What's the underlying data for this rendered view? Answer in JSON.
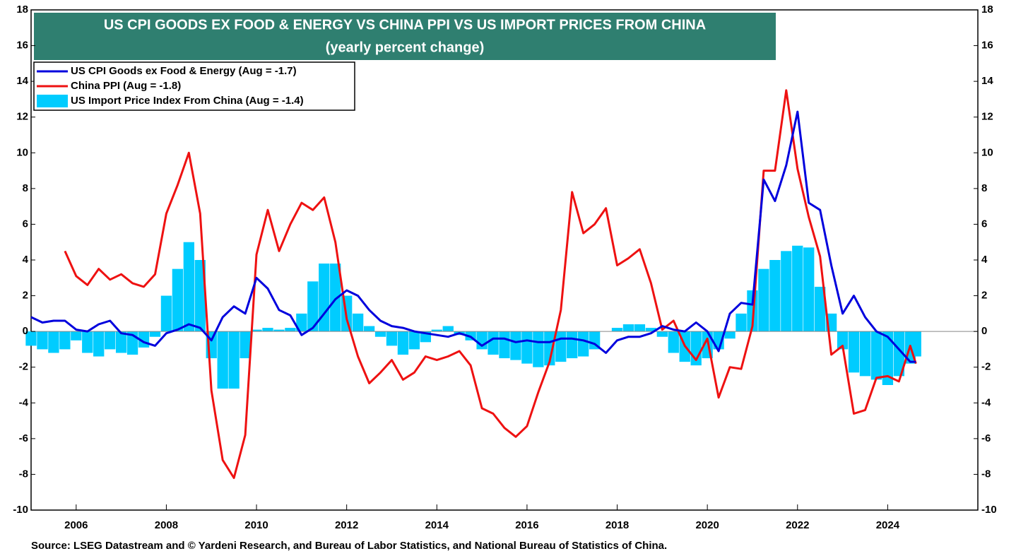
{
  "chart_data": {
    "type": "line",
    "title": "US CPI GOODS EX FOOD & ENERGY VS CHINA PPI VS US IMPORT PRICES FROM CHINA",
    "subtitle": "(yearly percent change)",
    "source": "Source: LSEG Datastream and © Yardeni Research, and Bureau of Labor Statistics, and National Bureau of Statistics of China.",
    "legend": "upper left",
    "xlim": [
      2005,
      2026
    ],
    "xticks": [
      2006,
      2008,
      2010,
      2012,
      2014,
      2016,
      2018,
      2020,
      2022,
      2024
    ],
    "ylim": [
      -10,
      18
    ],
    "yticks": [
      -10,
      -8,
      -6,
      -4,
      -2,
      0,
      2,
      4,
      6,
      8,
      10,
      12,
      14,
      16,
      18
    ],
    "x": [
      2005,
      2005.25,
      2005.5,
      2005.75,
      2006,
      2006.25,
      2006.5,
      2006.75,
      2007,
      2007.25,
      2007.5,
      2007.75,
      2008,
      2008.25,
      2008.5,
      2008.75,
      2009,
      2009.25,
      2009.5,
      2009.75,
      2010,
      2010.25,
      2010.5,
      2010.75,
      2011,
      2011.25,
      2011.5,
      2011.75,
      2012,
      2012.25,
      2012.5,
      2012.75,
      2013,
      2013.25,
      2013.5,
      2013.75,
      2014,
      2014.25,
      2014.5,
      2014.75,
      2015,
      2015.25,
      2015.5,
      2015.75,
      2016,
      2016.25,
      2016.5,
      2016.75,
      2017,
      2017.25,
      2017.5,
      2017.75,
      2018,
      2018.25,
      2018.5,
      2018.75,
      2019,
      2019.25,
      2019.5,
      2019.75,
      2020,
      2020.25,
      2020.5,
      2020.75,
      2021,
      2021.25,
      2021.5,
      2021.75,
      2022,
      2022.25,
      2022.5,
      2022.75,
      2023,
      2023.25,
      2023.5,
      2023.75,
      2024,
      2024.25,
      2024.5,
      2024.625
    ],
    "series": [
      {
        "name": "US Import Price Index From China (Aug = -1.4)",
        "type": "bar",
        "color": "#00ccff",
        "values": [
          -0.8,
          -1.0,
          -1.2,
          -1.0,
          -0.5,
          -1.2,
          -1.4,
          -1.0,
          -1.2,
          -1.3,
          -0.9,
          -0.3,
          2.0,
          3.5,
          5.0,
          4.0,
          -1.5,
          -3.2,
          -3.2,
          -1.5,
          0.1,
          0.2,
          0.1,
          0.2,
          1.0,
          2.8,
          3.8,
          3.8,
          2.0,
          1.0,
          0.3,
          -0.3,
          -0.8,
          -1.3,
          -1.0,
          -0.6,
          0.1,
          0.3,
          -0.2,
          -0.5,
          -1.0,
          -1.3,
          -1.5,
          -1.6,
          -1.8,
          -2.0,
          -1.9,
          -1.7,
          -1.5,
          -1.4,
          -1.0,
          0.0,
          0.2,
          0.4,
          0.4,
          0.2,
          -0.3,
          -1.2,
          -1.7,
          -1.9,
          -1.5,
          -1.0,
          -0.4,
          1.0,
          2.3,
          3.5,
          4.0,
          4.5,
          4.8,
          4.7,
          2.5,
          1.0,
          -1.0,
          -2.3,
          -2.5,
          -2.7,
          -3.0,
          -2.5,
          -1.8,
          -1.4
        ]
      },
      {
        "name": "China PPI (Aug = -1.8)",
        "type": "line",
        "color": "#ee1111",
        "values": [
          null,
          null,
          null,
          4.5,
          3.1,
          2.6,
          3.5,
          2.9,
          3.2,
          2.7,
          2.5,
          3.2,
          6.6,
          8.2,
          10.0,
          6.6,
          -3.3,
          -7.2,
          -8.2,
          -5.8,
          4.3,
          6.8,
          4.5,
          6.0,
          7.2,
          6.8,
          7.5,
          5.0,
          0.7,
          -1.4,
          -2.9,
          -2.3,
          -1.6,
          -2.7,
          -2.3,
          -1.4,
          -1.6,
          -1.4,
          -1.1,
          -1.9,
          -4.3,
          -4.6,
          -5.4,
          -5.9,
          -5.3,
          -3.4,
          -1.7,
          1.2,
          7.8,
          5.5,
          6.0,
          6.9,
          3.7,
          4.1,
          4.6,
          2.7,
          0.1,
          0.6,
          -0.8,
          -1.6,
          -0.4,
          -3.7,
          -2.0,
          -2.1,
          0.3,
          9.0,
          9.0,
          13.5,
          9.1,
          6.4,
          4.2,
          -1.3,
          -0.8,
          -4.6,
          -4.4,
          -2.6,
          -2.5,
          -2.8,
          -0.8,
          -1.8
        ]
      },
      {
        "name": "US CPI Goods ex Food & Energy (Aug = -1.7)",
        "type": "line",
        "color": "#0000dd",
        "values": [
          0.8,
          0.5,
          0.6,
          0.6,
          0.1,
          0.0,
          0.4,
          0.6,
          -0.1,
          -0.2,
          -0.6,
          -0.8,
          -0.1,
          0.1,
          0.4,
          0.2,
          -0.5,
          0.8,
          1.4,
          1.0,
          3.0,
          2.4,
          1.2,
          0.9,
          -0.2,
          0.2,
          1.0,
          1.8,
          2.3,
          2.0,
          1.2,
          0.6,
          0.3,
          0.2,
          0.0,
          -0.1,
          -0.2,
          -0.3,
          -0.1,
          -0.3,
          -0.8,
          -0.4,
          -0.4,
          -0.6,
          -0.5,
          -0.6,
          -0.6,
          -0.4,
          -0.4,
          -0.5,
          -0.7,
          -1.2,
          -0.5,
          -0.3,
          -0.3,
          -0.1,
          0.3,
          0.1,
          0.0,
          0.5,
          0.0,
          -1.1,
          1.0,
          1.6,
          1.5,
          8.5,
          7.3,
          9.3,
          12.3,
          7.2,
          6.8,
          3.7,
          1.0,
          2.0,
          0.8,
          0.0,
          -0.3,
          -1.0,
          -1.7,
          -1.7
        ]
      }
    ],
    "legend_order": [
      2,
      1,
      0
    ]
  }
}
